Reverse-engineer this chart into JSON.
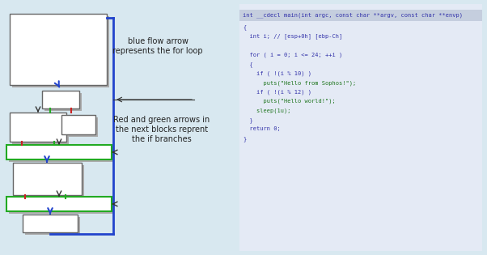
{
  "bg_color": "#d8e8f0",
  "code_header": "int __cdecl main(int argc, const char **argv, const char **envp)",
  "code_header_bg": "#c8d0dc",
  "code_lines": [
    [
      "{",
      "navy"
    ],
    [
      "  int i; // [esp+0h] [ebp-Ch]",
      "navy"
    ],
    [
      "",
      "navy"
    ],
    [
      "  for ( i = 0; i <= 24; ++i )",
      "navy"
    ],
    [
      "  {",
      "navy"
    ],
    [
      "    if ( !(i % 10) )",
      "navy"
    ],
    [
      "      puts(\"Hello from Sophos!\");",
      "green"
    ],
    [
      "    if ( !(i % 12) )",
      "navy"
    ],
    [
      "      puts(\"Hello world!\");",
      "green"
    ],
    [
      "    sleep(1u);",
      "green"
    ],
    [
      "  }",
      "navy"
    ],
    [
      "  return 0;",
      "navy"
    ],
    [
      "}",
      "navy"
    ]
  ],
  "label_blue": "blue flow arrow\nrepresents the for loop",
  "label_redgreen": "Red and green arrows in\nthe next blocks reprent\nthe if branches",
  "navy": "#3333aa",
  "green_code": "#227722",
  "blue_arrow": "#2244cc",
  "red_arrow": "#cc2222",
  "green_arrow": "#22aa22",
  "box_edge": "#666666",
  "box_shadow": "#aaaaaa"
}
